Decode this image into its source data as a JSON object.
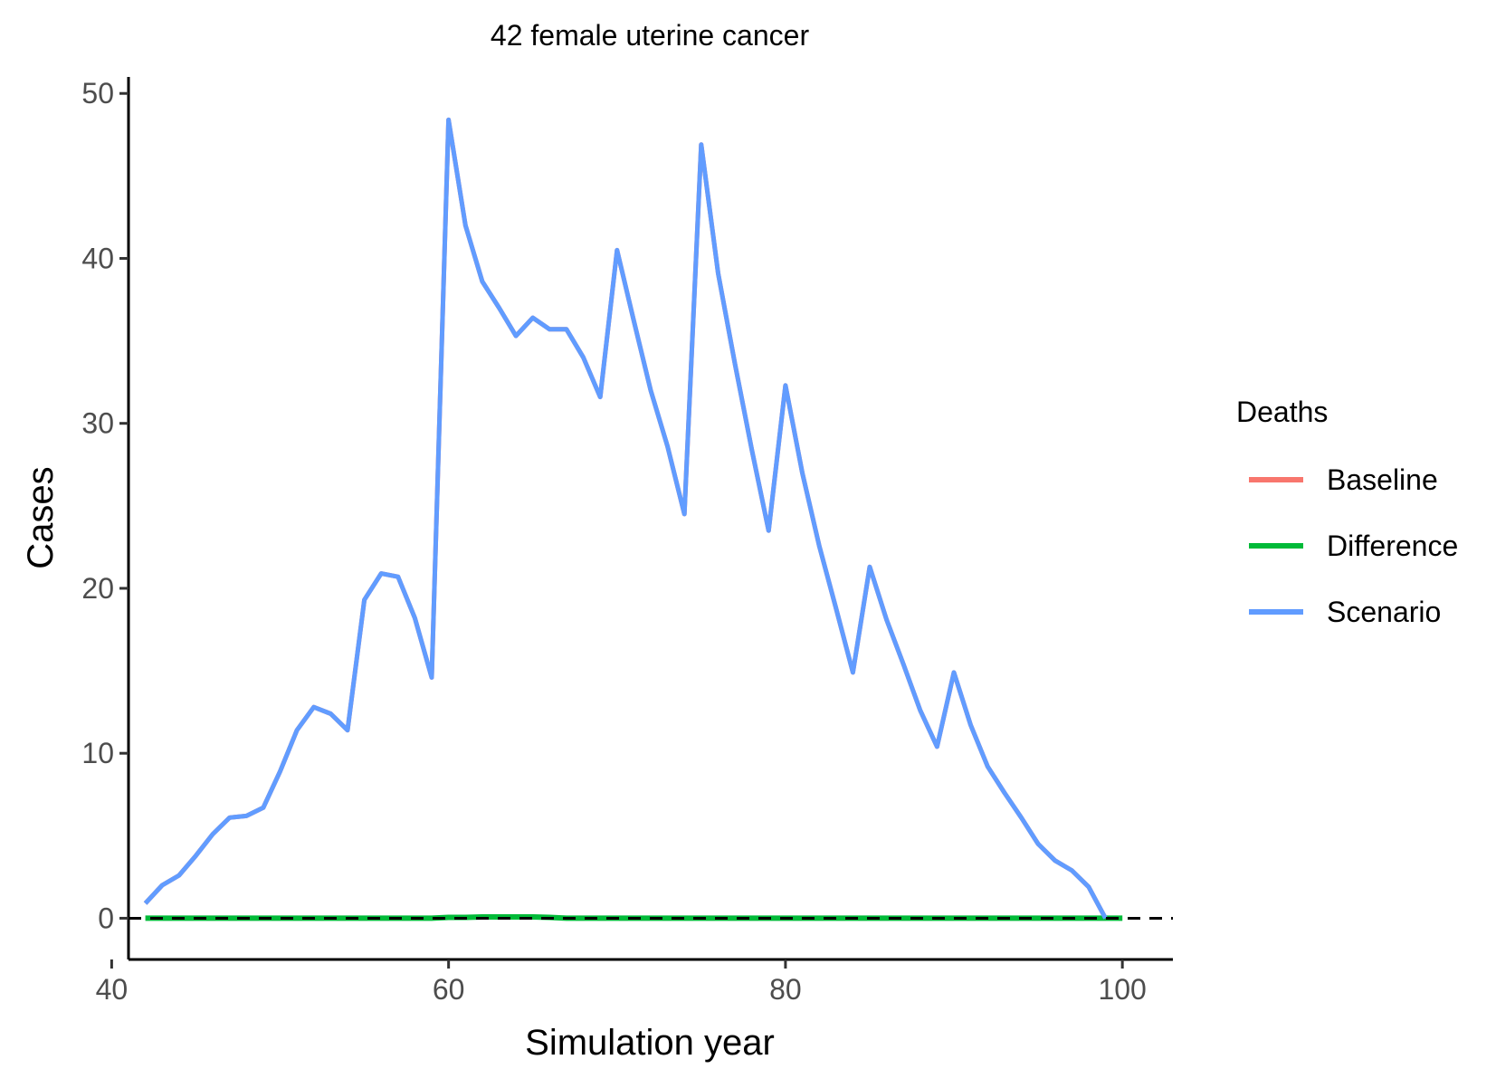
{
  "chart_data": {
    "type": "line",
    "title": "42 female uterine cancer",
    "xlabel": "Simulation year",
    "ylabel": "Cases",
    "xlim": [
      41,
      103
    ],
    "ylim": [
      -2.5,
      51
    ],
    "x_ticks": [
      40,
      60,
      80,
      100
    ],
    "y_ticks": [
      0,
      10,
      20,
      30,
      40,
      50
    ],
    "grid": false,
    "reference_line": {
      "y": 0,
      "style": "dashed",
      "color": "#000000"
    },
    "legend": {
      "title": "Deaths",
      "position": "right"
    },
    "series": [
      {
        "name": "Baseline",
        "color": "#F8766D",
        "x": [
          42,
          43,
          44,
          45,
          46,
          47,
          48,
          49,
          50,
          51,
          52,
          53,
          54,
          55,
          56,
          57,
          58,
          59,
          60,
          61,
          62,
          63,
          64,
          65,
          66,
          67,
          68,
          69,
          70,
          71,
          72,
          73,
          74,
          75,
          76,
          77,
          78,
          79,
          80,
          81,
          82,
          83,
          84,
          85,
          86,
          87,
          88,
          89,
          90,
          91,
          92,
          93,
          94,
          95,
          96,
          97,
          98,
          99
        ],
        "values": [
          0.9,
          2.0,
          2.6,
          3.8,
          5.1,
          6.1,
          6.2,
          6.7,
          8.9,
          11.4,
          12.8,
          12.4,
          11.4,
          19.3,
          20.9,
          20.7,
          18.2,
          14.6,
          48.4,
          42.0,
          38.6,
          37.0,
          35.3,
          36.4,
          35.7,
          35.7,
          34.0,
          31.6,
          40.5,
          36.2,
          32.0,
          28.6,
          24.5,
          46.9,
          39.1,
          33.6,
          28.4,
          23.5,
          32.3,
          27.0,
          22.6,
          18.8,
          14.9,
          21.3,
          18.1,
          15.4,
          12.6,
          10.4,
          14.9,
          11.7,
          9.2,
          7.6,
          6.1,
          4.5,
          3.5,
          2.9,
          1.9,
          0.0
        ]
      },
      {
        "name": "Difference",
        "color": "#00BA38",
        "x": [
          42,
          43,
          44,
          45,
          46,
          47,
          48,
          49,
          50,
          51,
          52,
          53,
          54,
          55,
          56,
          57,
          58,
          59,
          60,
          61,
          62,
          63,
          64,
          65,
          66,
          67,
          68,
          69,
          70,
          71,
          72,
          73,
          74,
          75,
          76,
          77,
          78,
          79,
          80,
          81,
          82,
          83,
          84,
          85,
          86,
          87,
          88,
          89,
          90,
          91,
          92,
          93,
          94,
          95,
          96,
          97,
          98,
          99,
          100
        ],
        "values": [
          0,
          0,
          0,
          0,
          0,
          0,
          0,
          0,
          0,
          0,
          0,
          0,
          0,
          0,
          0,
          0,
          0,
          0,
          0.05,
          0.05,
          0.08,
          0.08,
          0.08,
          0.08,
          0.05,
          0,
          0,
          0,
          0,
          0,
          0,
          0,
          0,
          0,
          0,
          0,
          0,
          0,
          0,
          0,
          0,
          0,
          0,
          0,
          0,
          0,
          0,
          0,
          0,
          0,
          0,
          0,
          0,
          0,
          0,
          0,
          0,
          0,
          0
        ]
      },
      {
        "name": "Scenario",
        "color": "#619CFF",
        "x": [
          42,
          43,
          44,
          45,
          46,
          47,
          48,
          49,
          50,
          51,
          52,
          53,
          54,
          55,
          56,
          57,
          58,
          59,
          60,
          61,
          62,
          63,
          64,
          65,
          66,
          67,
          68,
          69,
          70,
          71,
          72,
          73,
          74,
          75,
          76,
          77,
          78,
          79,
          80,
          81,
          82,
          83,
          84,
          85,
          86,
          87,
          88,
          89,
          90,
          91,
          92,
          93,
          94,
          95,
          96,
          97,
          98,
          99
        ],
        "values": [
          0.9,
          2.0,
          2.6,
          3.8,
          5.1,
          6.1,
          6.2,
          6.7,
          8.9,
          11.4,
          12.8,
          12.4,
          11.4,
          19.3,
          20.9,
          20.7,
          18.2,
          14.6,
          48.4,
          42.0,
          38.6,
          37.0,
          35.3,
          36.4,
          35.7,
          35.7,
          34.0,
          31.6,
          40.5,
          36.2,
          32.0,
          28.6,
          24.5,
          46.9,
          39.1,
          33.6,
          28.4,
          23.5,
          32.3,
          27.0,
          22.6,
          18.8,
          14.9,
          21.3,
          18.1,
          15.4,
          12.6,
          10.4,
          14.9,
          11.7,
          9.2,
          7.6,
          6.1,
          4.5,
          3.5,
          2.9,
          1.9,
          0.0
        ]
      }
    ]
  }
}
